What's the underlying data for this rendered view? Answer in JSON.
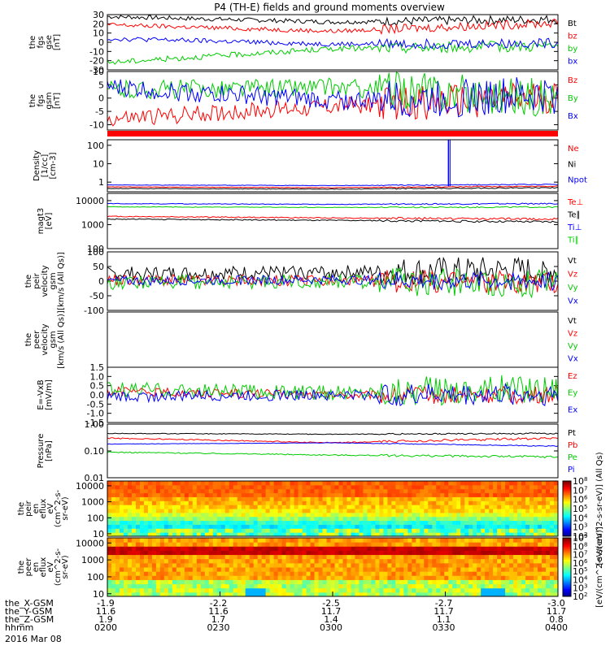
{
  "chart_data": {
    "type": "line",
    "title": "P4 (TH-E) fields and ground moments overview",
    "date_label": "2016 Mar 08",
    "x_range": [
      "02:00",
      "04:00"
    ],
    "time_labels": [
      "0200",
      "0230",
      "0300",
      "0330",
      "0400"
    ],
    "orbit_rows": [
      {
        "label": "the_X-GSM",
        "values": [
          "-1.9",
          "-2.2",
          "-2.5",
          "-2.7",
          "-3.0"
        ]
      },
      {
        "label": "the_Y-GSM",
        "values": [
          "11.6",
          "11.6",
          "11.7",
          "11.7",
          "11.7"
        ]
      },
      {
        "label": "the_Z-GSM",
        "values": [
          "1.9",
          "1.7",
          "1.4",
          "1.1",
          "0.8"
        ]
      },
      {
        "label": "hhmm",
        "values": [
          "0200",
          "0230",
          "0300",
          "0330",
          "0400"
        ]
      }
    ],
    "colors": {
      "black": "#000000",
      "red": "#ff0000",
      "green": "#00cc00",
      "blue": "#0000ff"
    },
    "panels": [
      {
        "id": "fgs-gse",
        "ylabel": [
          "the",
          "fgs",
          "gse",
          "[nT]"
        ],
        "yscale": "linear",
        "ylim": [
          -30,
          30
        ],
        "ticks": [
          "30",
          "20",
          "10",
          "0",
          "-10",
          "-20",
          "-30"
        ],
        "series": [
          {
            "name": "Bt",
            "color": "black",
            "start": 28,
            "mid": 22,
            "end": 25,
            "noise": 1.2
          },
          {
            "name": "bz",
            "color": "red",
            "start": 19,
            "mid": 12,
            "end": 21,
            "noise": 1.2
          },
          {
            "name": "by",
            "color": "green",
            "start": -22,
            "mid": -7,
            "end": -4,
            "noise": 1.5
          },
          {
            "name": "bx",
            "color": "blue",
            "start": 4,
            "mid": -2,
            "end": -1,
            "noise": 1.3
          }
        ]
      },
      {
        "id": "fgs-gsm",
        "ylabel": [
          "the",
          "fgs",
          "gsm",
          "[nT]"
        ],
        "yscale": "linear",
        "ylim": [
          -12,
          10
        ],
        "ticks": [
          "10",
          "5",
          "0",
          "-5",
          "-10"
        ],
        "series": [
          {
            "name": "Bz",
            "color": "red",
            "start": -8,
            "mid": -3,
            "end": 0,
            "noise": 1.6
          },
          {
            "name": "By",
            "color": "green",
            "start": 3,
            "mid": 4,
            "end": 0,
            "noise": 1.8
          },
          {
            "name": "Bx",
            "color": "blue",
            "start": 4,
            "mid": -1,
            "end": 1,
            "noise": 1.8
          }
        ]
      },
      {
        "id": "density",
        "ylabel": [
          "Density",
          "[1/cc]",
          "[cm-3]"
        ],
        "yscale": "log",
        "ylim": [
          0.3,
          200
        ],
        "ticks": [
          "100",
          "10",
          "1"
        ],
        "series": [
          {
            "name": "Ne",
            "color": "red",
            "start": 0.55,
            "mid": 0.5,
            "end": 0.6,
            "noise": 0.03
          },
          {
            "name": "Ni",
            "color": "black",
            "start": 0.45,
            "mid": 0.42,
            "end": 0.5,
            "noise": 0.03
          },
          {
            "name": "Npot",
            "color": "blue",
            "start": 0.7,
            "mid": 0.65,
            "end": 0.75,
            "noise": 0.03
          }
        ]
      },
      {
        "id": "temperature",
        "ylabel": [
          "magt3",
          "[eV]"
        ],
        "yscale": "log",
        "ylim": [
          100,
          20000
        ],
        "ticks": [
          "10000",
          "1000",
          "100"
        ],
        "series": [
          {
            "name": "Te⊥",
            "color": "red",
            "start": 2200,
            "mid": 1900,
            "end": 1700,
            "noise": 0.05
          },
          {
            "name": "Te∥",
            "color": "black",
            "start": 1700,
            "mid": 1500,
            "end": 1300,
            "noise": 0.05
          },
          {
            "name": "Ti⊥",
            "color": "blue",
            "start": 7500,
            "mid": 7000,
            "end": 7500,
            "noise": 0.03
          },
          {
            "name": "Ti∥",
            "color": "green",
            "start": 5500,
            "mid": 5200,
            "end": 5400,
            "noise": 0.03
          }
        ]
      },
      {
        "id": "peir-velocity",
        "ylabel": [
          "the",
          "peir",
          "velocity",
          "gsm",
          "[km/s (All Qs)]"
        ],
        "yscale": "linear",
        "ylim": [
          -100,
          100
        ],
        "ticks": [
          "100",
          "50",
          "0",
          "-50",
          "-100"
        ],
        "series": [
          {
            "name": "Vt",
            "color": "black",
            "start": 25,
            "mid": 30,
            "end": 35,
            "noise": 12
          },
          {
            "name": "Vz",
            "color": "red",
            "start": 5,
            "mid": 0,
            "end": -5,
            "noise": 10
          },
          {
            "name": "Vy",
            "color": "green",
            "start": -5,
            "mid": 0,
            "end": -10,
            "noise": 12
          },
          {
            "name": "Vx",
            "color": "blue",
            "start": 0,
            "mid": 5,
            "end": 0,
            "noise": 8
          }
        ]
      },
      {
        "id": "peer-velocity",
        "ylabel": [
          "the",
          "peer",
          "velocity",
          "gsm",
          "[km/s (All Qs)]"
        ],
        "yscale": "linear",
        "ylim": [
          -100,
          100
        ],
        "ticks": [],
        "series": [
          {
            "name": "Vt",
            "color": "black",
            "empty": true
          },
          {
            "name": "Vz",
            "color": "red",
            "empty": true
          },
          {
            "name": "Vy",
            "color": "green",
            "empty": true
          },
          {
            "name": "Vx",
            "color": "blue",
            "empty": true
          }
        ]
      },
      {
        "id": "efield",
        "ylabel": [
          "E=-VxB",
          "[mV/m]"
        ],
        "yscale": "linear",
        "ylim": [
          -1.5,
          1.5
        ],
        "ticks": [
          "1.5",
          "1.0",
          "0.5",
          "0.0",
          "-0.5",
          "-1.0",
          "-1.5"
        ],
        "series": [
          {
            "name": "Ez",
            "color": "red",
            "start": 0.2,
            "mid": 0,
            "end": 0,
            "noise": 0.12
          },
          {
            "name": "Ey",
            "color": "green",
            "start": 0.3,
            "mid": 0.1,
            "end": 0.4,
            "noise": 0.2
          },
          {
            "name": "Ex",
            "color": "blue",
            "start": -0.1,
            "mid": 0,
            "end": 0,
            "noise": 0.15
          }
        ]
      },
      {
        "id": "pressure",
        "ylabel": [
          "Pressure",
          "[nPa]"
        ],
        "yscale": "log",
        "ylim": [
          0.01,
          1.0
        ],
        "ticks": [
          "1.00",
          "0.10",
          "0.01"
        ],
        "series": [
          {
            "name": "Pt",
            "color": "black",
            "start": 0.45,
            "mid": 0.42,
            "end": 0.45,
            "noise": 0.03
          },
          {
            "name": "Pb",
            "color": "red",
            "start": 0.3,
            "mid": 0.2,
            "end": 0.3,
            "noise": 0.05
          },
          {
            "name": "Pe",
            "color": "green",
            "start": 0.09,
            "mid": 0.07,
            "end": 0.06,
            "noise": 0.05
          },
          {
            "name": "Pi",
            "color": "blue",
            "start": 0.18,
            "mid": 0.2,
            "end": 0.15,
            "noise": 0.02
          }
        ]
      }
    ],
    "spectrograms": [
      {
        "id": "peir-spectrogram",
        "ylabel": [
          "the",
          "peir",
          "en",
          "eflux",
          "eV",
          "(cm^2-s-",
          "sr-eV)"
        ],
        "yscale": "log",
        "ylim": [
          7,
          20000
        ],
        "ticks": [
          "10000",
          "1000",
          "100",
          "10"
        ],
        "colorbar_label": "[eV/(cm^2-s-sr-eV)] (All Qs)",
        "colorbar_ticks": [
          "10^8",
          "10^7",
          "10^6",
          "10^5",
          "10^4",
          "10^3",
          "10^2"
        ],
        "colorbar_range": [
          2,
          8
        ]
      },
      {
        "id": "peer-spectrogram",
        "ylabel": [
          "the",
          "peer",
          "en",
          "eflux",
          "eV",
          "(cm^2-s-",
          "sr-eV)"
        ],
        "yscale": "log",
        "ylim": [
          7,
          20000
        ],
        "ticks": [
          "10000",
          "1000",
          "100",
          "10"
        ],
        "colorbar_label": "[eV/(cm^2-s-sr-eV)]",
        "colorbar_ticks": [
          "10^9",
          "10^8",
          "10^7",
          "10^6",
          "10^5",
          "10^4",
          "10^3",
          "10^2"
        ],
        "colorbar_range": [
          2,
          9
        ]
      }
    ]
  }
}
